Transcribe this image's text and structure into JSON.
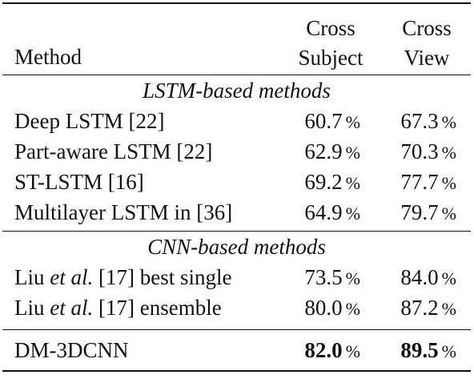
{
  "header": {
    "method": "Method",
    "cross_subject": [
      "Cross",
      "Subject"
    ],
    "cross_view": [
      "Cross",
      "View"
    ]
  },
  "sections": [
    {
      "title": "LSTM-based methods",
      "rows": [
        {
          "method": "Deep LSTM [22]",
          "cs": "60.7",
          "cv": "67.3"
        },
        {
          "method": "Part-aware LSTM [22]",
          "cs": "62.9",
          "cv": "70.3"
        },
        {
          "method": "ST-LSTM [16]",
          "cs": "69.2",
          "cv": "77.7"
        },
        {
          "method": "Multilayer LSTM in [36]",
          "cs": "64.9",
          "cv": "79.7"
        }
      ]
    },
    {
      "title": "CNN-based methods",
      "rows": [
        {
          "method_prefix": "Liu ",
          "method_em": "et al.",
          "method_suffix": " [17] best single",
          "cs": "73.5",
          "cv": "84.0"
        },
        {
          "method_prefix": "Liu ",
          "method_em": "et al.",
          "method_suffix": " [17] ensemble",
          "cs": "80.0",
          "cv": "87.2"
        }
      ]
    }
  ],
  "final": {
    "method": "DM-3DCNN",
    "cs": "82.0",
    "cv": "89.5"
  },
  "unit": "%"
}
